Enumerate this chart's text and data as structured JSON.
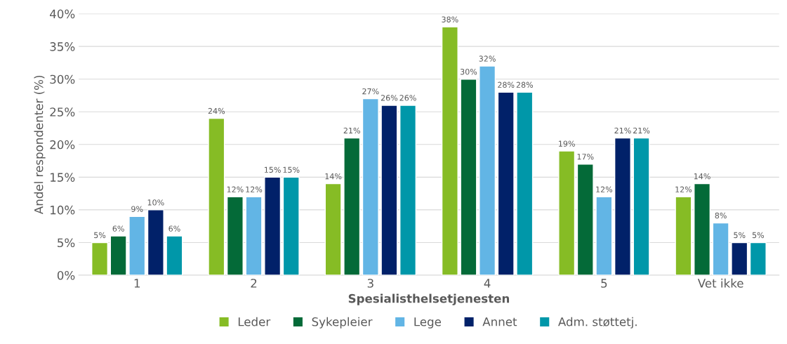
{
  "chart_data": {
    "type": "bar",
    "xlabel": "Spesialisthelsetjenesten",
    "ylabel": "Andel respondenter (%)",
    "categories": [
      "1",
      "2",
      "3",
      "4",
      "5",
      "Vet ikke"
    ],
    "series": [
      {
        "name": "Leder",
        "color": "#86bc25",
        "values": [
          5,
          24,
          14,
          38,
          19,
          12
        ],
        "value_labels": [
          "5%",
          "24%",
          "14%",
          "38%",
          "19%",
          "12%"
        ]
      },
      {
        "name": "Sykepleier",
        "color": "#046a38",
        "values": [
          6,
          12,
          21,
          30,
          17,
          14
        ],
        "value_labels": [
          "6%",
          "12%",
          "21%",
          "30%",
          "17%",
          "14%"
        ]
      },
      {
        "name": "Lege",
        "color": "#62b5e5",
        "values": [
          9,
          12,
          27,
          32,
          12,
          8
        ],
        "value_labels": [
          "9%",
          "12%",
          "27%",
          "32%",
          "12%",
          "8%"
        ]
      },
      {
        "name": "Annet",
        "color": "#012169",
        "values": [
          10,
          15,
          26,
          28,
          21,
          5
        ],
        "value_labels": [
          "10%",
          "15%",
          "26%",
          "28%",
          "21%",
          "5%"
        ]
      },
      {
        "name": "Adm. støttetj.",
        "color": "#0097a9",
        "values": [
          6,
          15,
          26,
          28,
          21,
          5
        ],
        "value_labels": [
          "6%",
          "15%",
          "26%",
          "28%",
          "21%",
          "5%"
        ]
      }
    ],
    "ylim": [
      0,
      40
    ],
    "yticks": [
      {
        "value": 0,
        "label": "0%"
      },
      {
        "value": 5,
        "label": "5%"
      },
      {
        "value": 10,
        "label": "10%"
      },
      {
        "value": 15,
        "label": "15%"
      },
      {
        "value": 20,
        "label": "20%"
      },
      {
        "value": 25,
        "label": "25%"
      },
      {
        "value": 30,
        "label": "30%"
      },
      {
        "value": 35,
        "label": "35%"
      },
      {
        "value": 40,
        "label": "40%"
      }
    ],
    "grid": "y",
    "legend": "bottom"
  }
}
